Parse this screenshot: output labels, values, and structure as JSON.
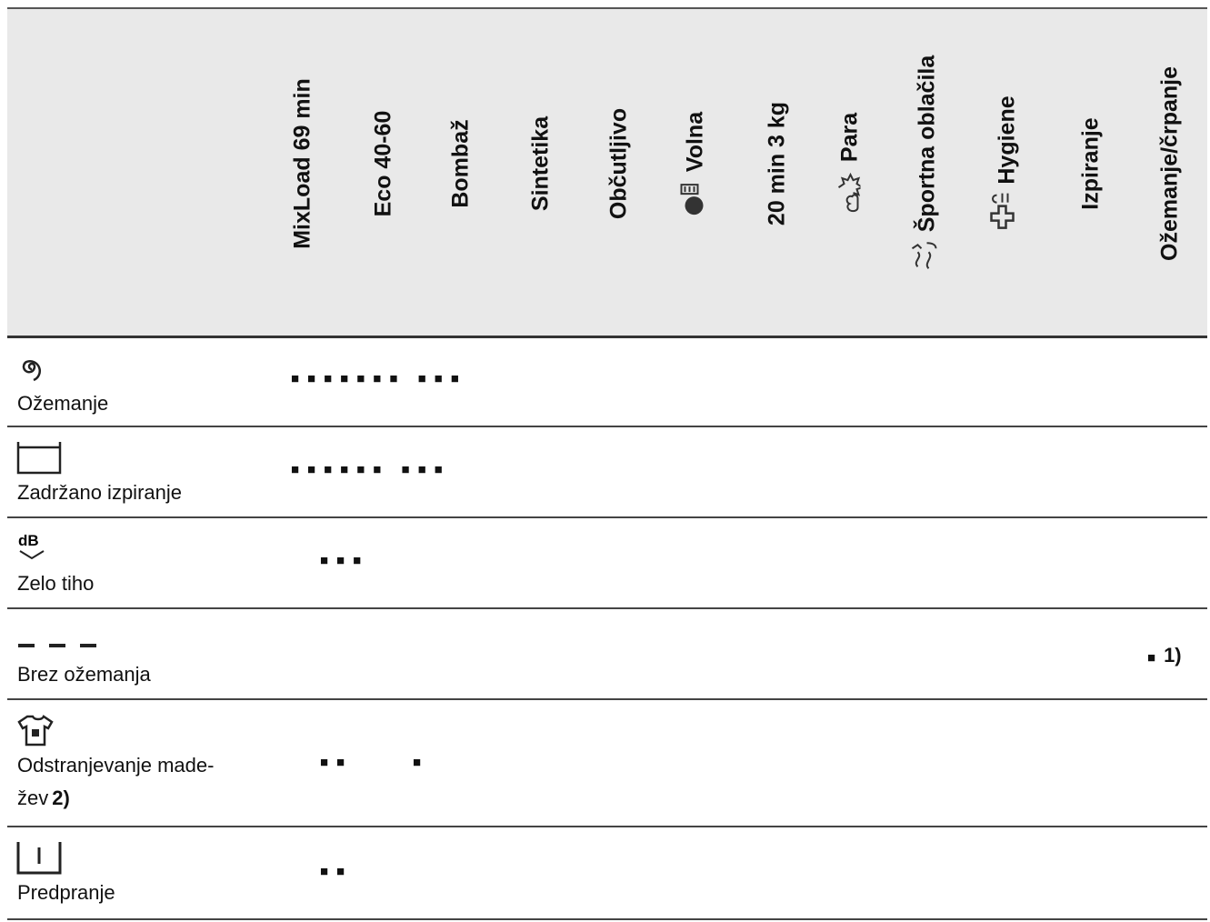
{
  "columns": [
    "MixLoad 69 min",
    "Eco 40-60",
    "Bombaž",
    "Sintetika",
    "Občutljivo",
    "Volna",
    "20 min 3 kg",
    "Para",
    "Športna oblačila",
    "Hygiene",
    "Izpiranje",
    "Ožemanje/črpanje"
  ],
  "rows": [
    {
      "label": [
        "Ožemanje"
      ],
      "marks": "■■■■■■■ ■■■"
    },
    {
      "label": [
        "Zadržano izpiranje"
      ],
      "marks": "■■■■■■ ■■■"
    },
    {
      "label": [
        "Zelo tiho"
      ],
      "marks": "■■■"
    },
    {
      "label": [
        "Brez ožemanja"
      ],
      "marks": "■",
      "note": "1)"
    },
    {
      "label": [
        "Odstranjevanje made-",
        "žev"
      ],
      "note": "2)",
      "marks": "■■     ■"
    },
    {
      "label": [
        "Predpranje"
      ],
      "marks": "■■"
    }
  ]
}
